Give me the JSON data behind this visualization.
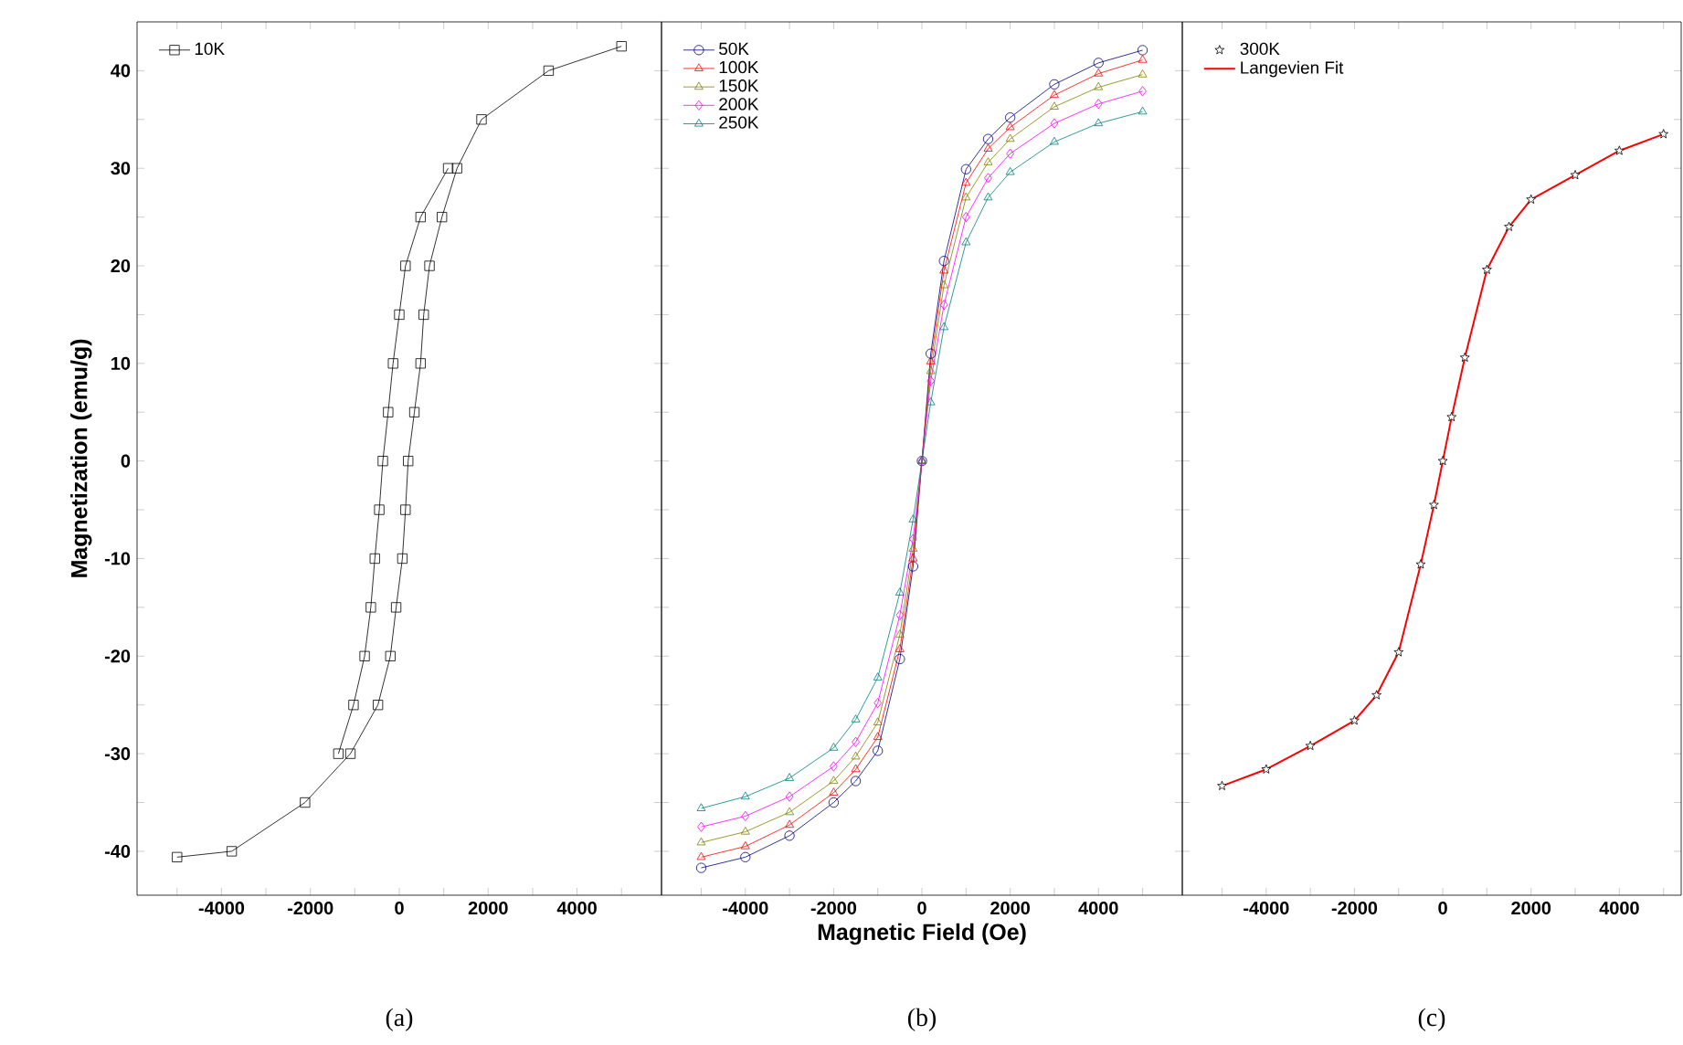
{
  "chart_data": [
    {
      "type": "line",
      "ylabel": "Magnetization (emu/g)",
      "annotations": [
        "(a)"
      ],
      "legend": "top left",
      "xlim": [
        -5900,
        5900
      ],
      "ylim": [
        -44.5,
        45
      ],
      "xticks": [
        {
          "value": -5000,
          "label": null
        },
        -4000,
        {
          "value": -3000,
          "label": null
        },
        -2000,
        {
          "value": -1000,
          "label": null
        },
        0,
        {
          "value": 1000,
          "label": null
        },
        2000,
        {
          "value": 3000,
          "label": null
        },
        4000,
        {
          "value": 5000,
          "label": null
        }
      ],
      "yticks": [
        -40,
        {
          "value": -35,
          "label": null
        },
        -30,
        {
          "value": -25,
          "label": null
        },
        -20,
        {
          "value": -15,
          "label": null
        },
        -10,
        {
          "value": -5,
          "label": null
        },
        0,
        {
          "value": 5,
          "label": null
        },
        10,
        {
          "value": 15,
          "label": null
        },
        20,
        {
          "value": 25,
          "label": null
        },
        30,
        {
          "value": 35,
          "label": null
        },
        40
      ],
      "series": [
        {
          "name": "10K",
          "marker": "square",
          "color": "#000000",
          "x": [
            -5000,
            -3770,
            -2120,
            -1100,
            -480,
            -200,
            -70,
            70,
            140,
            200,
            340,
            480,
            550,
            680,
            960,
            1300,
            1850,
            3360,
            5000
          ],
          "values": [
            -40.6,
            -40,
            -35,
            -30,
            -25,
            -20,
            -15,
            -10,
            -5,
            0,
            5,
            10,
            15,
            20,
            25,
            30,
            35,
            40,
            42.5
          ]
        },
        {
          "marker": "square",
          "color": "#000000",
          "x": [
            -1370,
            -1030,
            -780,
            -640,
            -550,
            -450,
            -370,
            -250,
            -140,
            0,
            140,
            480,
            1100
          ],
          "values": [
            -30,
            -25,
            -20,
            -15,
            -10,
            -5,
            0,
            5,
            10,
            15,
            20,
            25,
            30
          ]
        }
      ]
    },
    {
      "type": "line",
      "xlabel": "Magnetic Field (Oe)",
      "annotations": [
        "(b)"
      ],
      "legend": "top left",
      "tick_labels": "x",
      "xlim": [
        -5900,
        5900
      ],
      "ylim": [
        -44.5,
        45
      ],
      "xticks": [
        {
          "value": -5000,
          "label": null
        },
        -4000,
        {
          "value": -3000,
          "label": null
        },
        -2000,
        {
          "value": -1000,
          "label": null
        },
        0,
        {
          "value": 1000,
          "label": null
        },
        2000,
        {
          "value": 3000,
          "label": null
        },
        4000,
        {
          "value": 5000,
          "label": null
        }
      ],
      "yticks": [
        -40,
        {
          "value": -35,
          "label": null
        },
        -30,
        {
          "value": -25,
          "label": null
        },
        -20,
        {
          "value": -15,
          "label": null
        },
        -10,
        {
          "value": -5,
          "label": null
        },
        0,
        {
          "value": 5,
          "label": null
        },
        10,
        {
          "value": 15,
          "label": null
        },
        20,
        {
          "value": 25,
          "label": null
        },
        30,
        {
          "value": 35,
          "label": null
        },
        40
      ],
      "x": [
        -5000,
        -4000,
        -3000,
        -2000,
        -1500,
        -1000,
        -500,
        -200,
        0,
        200,
        500,
        1000,
        1500,
        2000,
        3000,
        4000,
        5000
      ],
      "series": [
        {
          "name": "50K",
          "marker": "circle",
          "color": "#000080",
          "values": [
            -41.7,
            -40.6,
            -38.4,
            -35.0,
            -32.8,
            -29.7,
            -20.3,
            -10.8,
            0,
            11,
            20.5,
            29.9,
            33,
            35.2,
            38.6,
            40.8,
            42.1
          ]
        },
        {
          "name": "100K",
          "marker": "triangle",
          "color": "#ff0000",
          "values": [
            -40.6,
            -39.5,
            -37.3,
            -34.0,
            -31.6,
            -28.3,
            -19.3,
            -10,
            0,
            10.2,
            19.5,
            28.5,
            32,
            34.2,
            37.5,
            39.7,
            41.1
          ]
        },
        {
          "name": "150K",
          "marker": "triangle",
          "color": "#808000",
          "values": [
            -39.1,
            -38.0,
            -36.0,
            -32.8,
            -30.3,
            -26.8,
            -17.8,
            -9,
            0,
            9.2,
            18,
            27,
            30.6,
            33,
            36.3,
            38.3,
            39.6
          ]
        },
        {
          "name": "200K",
          "marker": "diamond",
          "color": "#ff00ff",
          "values": [
            -37.5,
            -36.4,
            -34.4,
            -31.3,
            -28.8,
            -24.8,
            -15.8,
            -8,
            0,
            8.2,
            16,
            25,
            29,
            31.5,
            34.6,
            36.6,
            37.9
          ]
        },
        {
          "name": "250K",
          "marker": "triangle",
          "color": "#008080",
          "values": [
            -35.6,
            -34.4,
            -32.5,
            -29.4,
            -26.5,
            -22.2,
            -13.5,
            -6,
            0,
            6,
            13.7,
            22.4,
            27,
            29.6,
            32.7,
            34.6,
            35.8
          ]
        }
      ]
    },
    {
      "type": "line",
      "annotations": [
        "(c)"
      ],
      "legend": "top left",
      "tick_labels": "x",
      "xlim": [
        -5900,
        5400
      ],
      "ylim": [
        -44.5,
        45
      ],
      "xticks": [
        {
          "value": -5000,
          "label": null
        },
        -4000,
        {
          "value": -3000,
          "label": null
        },
        -2000,
        {
          "value": -1000,
          "label": null
        },
        0,
        {
          "value": 1000,
          "label": null
        },
        2000,
        {
          "value": 3000,
          "label": null
        },
        4000,
        {
          "value": 5000,
          "label": null
        }
      ],
      "yticks": [
        -40,
        {
          "value": -35,
          "label": null
        },
        -30,
        {
          "value": -25,
          "label": null
        },
        -20,
        {
          "value": -15,
          "label": null
        },
        -10,
        {
          "value": -5,
          "label": null
        },
        0,
        {
          "value": 5,
          "label": null
        },
        10,
        {
          "value": 15,
          "label": null
        },
        20,
        {
          "value": 25,
          "label": null
        },
        30,
        {
          "value": 35,
          "label": null
        },
        40
      ],
      "x": [
        -5000,
        -4000,
        -3000,
        -2000,
        -1500,
        -1000,
        -500,
        -200,
        0,
        200,
        500,
        1000,
        1500,
        2000,
        3000,
        4000,
        5000
      ],
      "series": [
        {
          "name": "300K",
          "type": "scatter",
          "marker": "star",
          "color": "#000000",
          "values": [
            -33.3,
            -31.6,
            -29.2,
            -26.6,
            -24,
            -19.6,
            -10.6,
            -4.5,
            0,
            4.5,
            10.6,
            19.6,
            24,
            26.8,
            29.3,
            31.8,
            33.5
          ]
        },
        {
          "name": "Langevien Fit",
          "marker": "none",
          "color": "#ff0000",
          "values": [
            -33.3,
            -31.6,
            -29.2,
            -26.6,
            -24,
            -19.6,
            -10.6,
            -4.5,
            0,
            4.5,
            10.6,
            19.6,
            24,
            26.8,
            29.3,
            31.8,
            33.5
          ]
        }
      ]
    }
  ]
}
